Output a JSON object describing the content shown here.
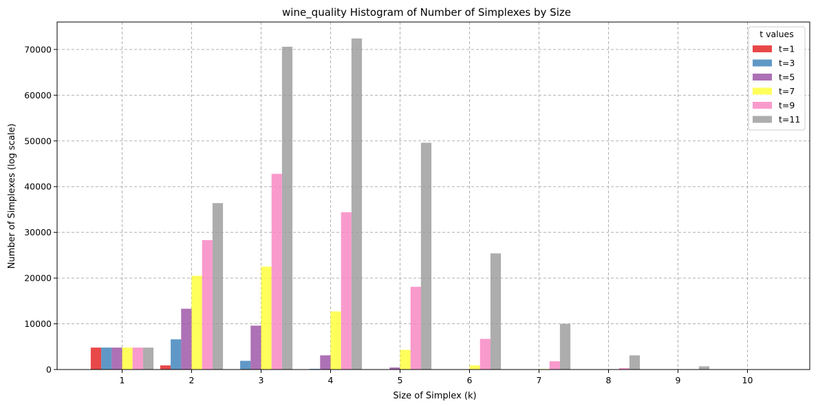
{
  "chart_data": {
    "type": "bar",
    "title": "wine_quality Histogram of Number of Simplexes by Size",
    "xlabel": "Size of Simplex (k)",
    "ylabel": "Number of Simplexes (log scale)",
    "categories": [
      "1",
      "2",
      "3",
      "4",
      "5",
      "6",
      "7",
      "8",
      "9",
      "10"
    ],
    "ylim": [
      0,
      76000
    ],
    "yticks": [
      0,
      10000,
      20000,
      30000,
      40000,
      50000,
      60000,
      70000
    ],
    "grid": true,
    "legend": {
      "title": "t values",
      "position": "top-right"
    },
    "series": [
      {
        "name": "t=1",
        "color": "#e41a1c",
        "values": [
          4800,
          900,
          0,
          0,
          0,
          0,
          0,
          0,
          0,
          0
        ]
      },
      {
        "name": "t=3",
        "color": "#377eb8",
        "values": [
          4800,
          6600,
          1900,
          150,
          0,
          0,
          0,
          0,
          0,
          0
        ]
      },
      {
        "name": "t=5",
        "color": "#984ea3",
        "values": [
          4800,
          13300,
          9600,
          3100,
          450,
          30,
          0,
          0,
          0,
          0
        ]
      },
      {
        "name": "t=7",
        "color": "#ffff33",
        "values": [
          4800,
          20500,
          22500,
          12700,
          4300,
          900,
          120,
          0,
          0,
          0
        ]
      },
      {
        "name": "t=9",
        "color": "#f781bf",
        "values": [
          4800,
          28300,
          42800,
          34400,
          18100,
          6700,
          1800,
          300,
          30,
          0
        ]
      },
      {
        "name": "t=11",
        "color": "#999999",
        "values": [
          4800,
          36400,
          70600,
          72400,
          49600,
          25400,
          10000,
          3100,
          700,
          80
        ]
      }
    ]
  }
}
